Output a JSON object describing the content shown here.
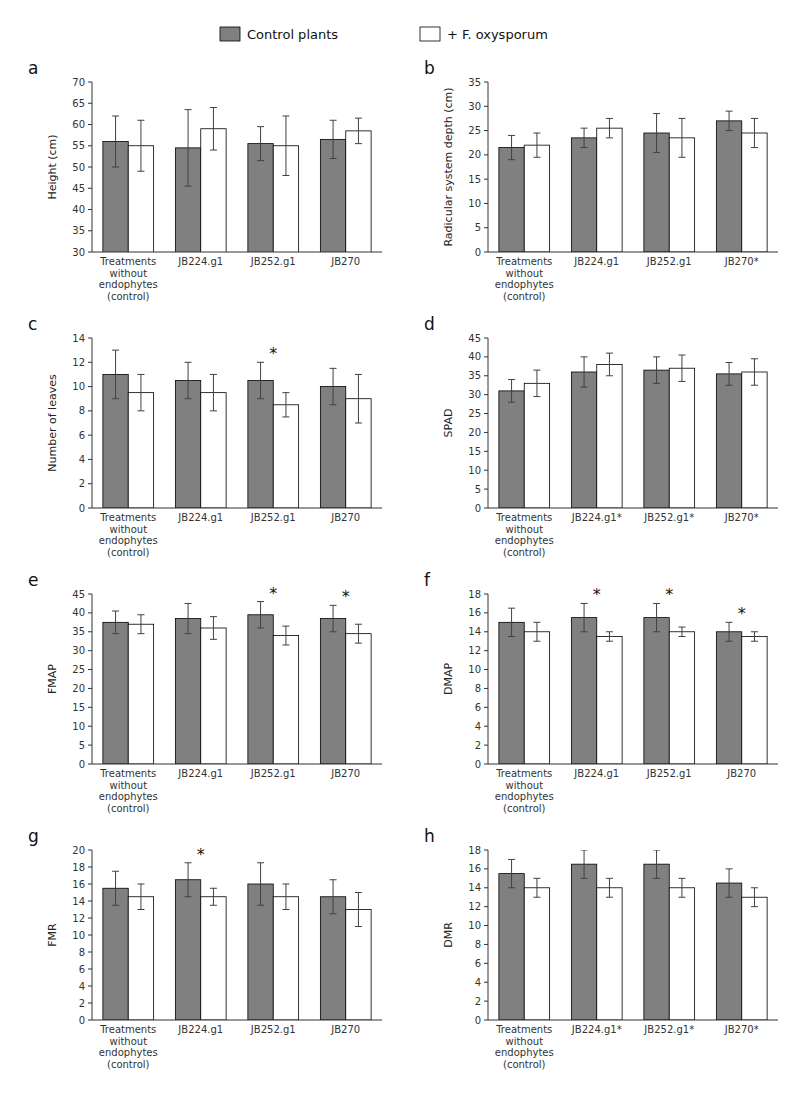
{
  "chart_data": [
    {
      "type": "bar",
      "title": "a",
      "y_label": "Height (cm)",
      "ylim": [
        30,
        70
      ],
      "yticks": [
        30,
        35,
        40,
        45,
        50,
        55,
        60,
        65,
        70
      ],
      "grid": false,
      "legend": "top",
      "categories": [
        "Treatments\nwithout\nendophytes\n(control)",
        "JB224.g1",
        "JB252.g1",
        "JB270"
      ],
      "series": [
        {
          "name": "Control plants",
          "color": "#808080",
          "values": [
            56,
            54.5,
            55.5,
            56.5
          ],
          "errors": [
            6,
            9,
            4,
            4.5
          ]
        },
        {
          "name": "+ F. oxysporum",
          "color": "#ffffff",
          "values": [
            55,
            59,
            55,
            58.5
          ],
          "errors": [
            6,
            5,
            7,
            3
          ]
        }
      ],
      "significance": [
        null,
        null,
        null,
        null
      ]
    },
    {
      "type": "bar",
      "title": "b",
      "y_label": "Radicular system depth (cm)",
      "ylim": [
        0,
        35
      ],
      "yticks": [
        0,
        5,
        10,
        15,
        20,
        25,
        30,
        35
      ],
      "grid": false,
      "categories": [
        "Treatments\nwithout\nendophytes\n(control)",
        "JB224.g1",
        "JB252.g1",
        "JB270*"
      ],
      "series": [
        {
          "color": "#808080",
          "values": [
            21.5,
            23.5,
            24.5,
            27
          ],
          "errors": [
            2.5,
            2,
            4,
            2
          ]
        },
        {
          "color": "#ffffff",
          "values": [
            22,
            25.5,
            23.5,
            24.5
          ],
          "errors": [
            2.5,
            2,
            4,
            3
          ]
        }
      ],
      "significance": [
        null,
        null,
        null,
        null
      ]
    },
    {
      "type": "bar",
      "title": "c",
      "y_label": "Number of leaves",
      "ylim": [
        0,
        14
      ],
      "yticks": [
        0,
        2,
        4,
        6,
        8,
        10,
        12,
        14
      ],
      "grid": false,
      "categories": [
        "Treatments\nwithout\nendophytes\n(control)",
        "JB224.g1",
        "JB252.g1",
        "JB270"
      ],
      "series": [
        {
          "color": "#808080",
          "values": [
            11,
            10.5,
            10.5,
            10
          ],
          "errors": [
            2,
            1.5,
            1.5,
            1.5
          ]
        },
        {
          "color": "#ffffff",
          "values": [
            9.5,
            9.5,
            8.5,
            9
          ],
          "errors": [
            1.5,
            1.5,
            1,
            2
          ]
        }
      ],
      "significance": [
        null,
        null,
        "*",
        null
      ]
    },
    {
      "type": "bar",
      "title": "d",
      "y_label": "SPAD",
      "ylim": [
        0,
        45
      ],
      "yticks": [
        0,
        5,
        10,
        15,
        20,
        25,
        30,
        35,
        40,
        45
      ],
      "grid": false,
      "categories": [
        "Treatments\nwithout\nendophytes\n(control)",
        "JB224.g1*",
        "JB252.g1*",
        "JB270*"
      ],
      "series": [
        {
          "color": "#808080",
          "values": [
            31,
            36,
            36.5,
            35.5
          ],
          "errors": [
            3,
            4,
            3.5,
            3
          ]
        },
        {
          "color": "#ffffff",
          "values": [
            33,
            38,
            37,
            36
          ],
          "errors": [
            3.5,
            3,
            3.5,
            3.5
          ]
        }
      ],
      "significance": [
        null,
        null,
        null,
        null
      ]
    },
    {
      "type": "bar",
      "title": "e",
      "y_label": "FMAP",
      "ylim": [
        0,
        45
      ],
      "yticks": [
        0,
        5,
        10,
        15,
        20,
        25,
        30,
        35,
        40,
        45
      ],
      "grid": false,
      "categories": [
        "Treatments\nwithout\nendophytes\n(control)",
        "JB224.g1",
        "JB252.g1",
        "JB270"
      ],
      "series": [
        {
          "color": "#808080",
          "values": [
            37.5,
            38.5,
            39.5,
            38.5
          ],
          "errors": [
            3,
            4,
            3.5,
            3.5
          ]
        },
        {
          "color": "#ffffff",
          "values": [
            37,
            36,
            34,
            34.5
          ],
          "errors": [
            2.5,
            3,
            2.5,
            2.5
          ]
        }
      ],
      "significance": [
        null,
        null,
        "*",
        "*"
      ]
    },
    {
      "type": "bar",
      "title": "f",
      "y_label": "DMAP",
      "ylim": [
        0,
        18
      ],
      "yticks": [
        0,
        2,
        4,
        6,
        8,
        10,
        12,
        14,
        16,
        18
      ],
      "grid": false,
      "categories": [
        "Treatments\nwithout\nendophytes\n(control)",
        "JB224.g1",
        "JB252.g1",
        "JB270"
      ],
      "series": [
        {
          "color": "#808080",
          "values": [
            15,
            15.5,
            15.5,
            14
          ],
          "errors": [
            1.5,
            1.5,
            1.5,
            1
          ]
        },
        {
          "color": "#ffffff",
          "values": [
            14,
            13.5,
            14,
            13.5
          ],
          "errors": [
            1,
            0.5,
            0.5,
            0.5
          ]
        }
      ],
      "significance": [
        null,
        "*",
        "*",
        "*"
      ]
    },
    {
      "type": "bar",
      "title": "g",
      "y_label": "FMR",
      "ylim": [
        0,
        20
      ],
      "yticks": [
        0,
        2,
        4,
        6,
        8,
        10,
        12,
        14,
        16,
        18,
        20
      ],
      "grid": false,
      "categories": [
        "Treatments\nwithout\nendophytes\n(control)",
        "JB224.g1",
        "JB252.g1",
        "JB270"
      ],
      "series": [
        {
          "color": "#808080",
          "values": [
            15.5,
            16.5,
            16,
            14.5
          ],
          "errors": [
            2,
            2,
            2.5,
            2
          ]
        },
        {
          "color": "#ffffff",
          "values": [
            14.5,
            14.5,
            14.5,
            13
          ],
          "errors": [
            1.5,
            1,
            1.5,
            2
          ]
        }
      ],
      "significance": [
        null,
        "*",
        null,
        null
      ]
    },
    {
      "type": "bar",
      "title": "h",
      "y_label": "DMR",
      "ylim": [
        0,
        18
      ],
      "yticks": [
        0,
        2,
        4,
        6,
        8,
        10,
        12,
        14,
        16,
        18
      ],
      "grid": false,
      "categories": [
        "Treatments\nwithout\nendophytes\n(control)",
        "JB224.g1*",
        "JB252.g1*",
        "JB270*"
      ],
      "series": [
        {
          "color": "#808080",
          "values": [
            15.5,
            16.5,
            16.5,
            14.5
          ],
          "errors": [
            1.5,
            1.5,
            1.5,
            1.5
          ]
        },
        {
          "color": "#ffffff",
          "values": [
            14,
            14,
            14,
            13
          ],
          "errors": [
            1,
            1,
            1,
            1
          ]
        }
      ],
      "significance": [
        null,
        null,
        null,
        null
      ]
    }
  ]
}
